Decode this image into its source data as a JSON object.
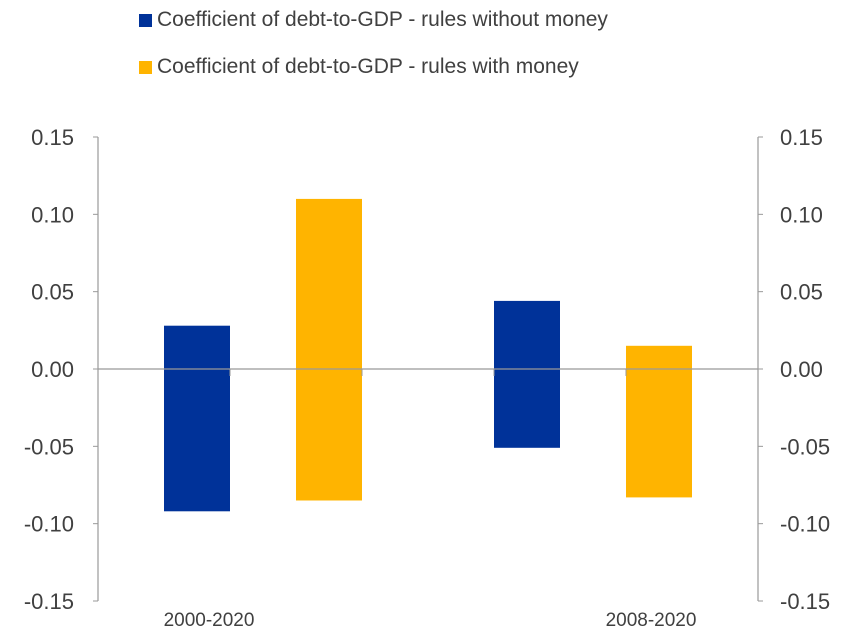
{
  "chart_data": {
    "type": "floating_bar",
    "title": "",
    "categories": [
      "2000-2020",
      "2008-2020"
    ],
    "series": [
      {
        "name": "Coefficient of debt-to-GDP - rules without money",
        "color": "#003299",
        "ranges": [
          [
            -0.092,
            0.028
          ],
          [
            -0.051,
            0.044
          ]
        ]
      },
      {
        "name": "Coefficient of debt-to-GDP - rules with money",
        "color": "#FFB400",
        "ranges": [
          [
            -0.085,
            0.11
          ],
          [
            -0.083,
            0.015
          ]
        ]
      }
    ],
    "ylim": [
      -0.15,
      0.15
    ],
    "yticks": [
      "0.15",
      "0.10",
      "0.05",
      "0.00",
      "-0.05",
      "-0.10",
      "-0.15"
    ],
    "y2ticks": [
      "0.15",
      "0.10",
      "0.05",
      "0.00",
      "-0.05",
      "-0.10",
      "-0.15"
    ],
    "legend_position": "top",
    "grid": false,
    "axis_color": "#999999",
    "label_color": "#404040"
  }
}
